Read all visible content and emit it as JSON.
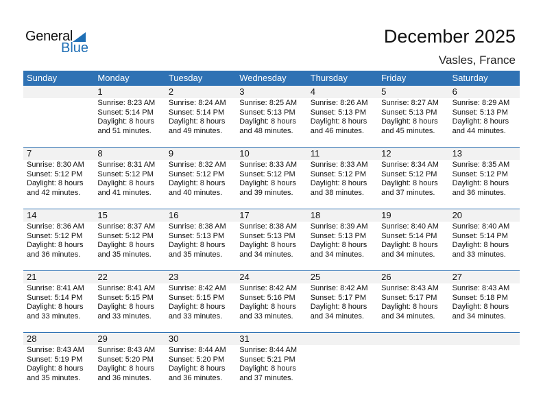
{
  "logo": {
    "text1": "General",
    "text2": "Blue"
  },
  "title": "December 2025",
  "location": "Vasles, France",
  "weekdays": [
    "Sunday",
    "Monday",
    "Tuesday",
    "Wednesday",
    "Thursday",
    "Friday",
    "Saturday"
  ],
  "weeks": [
    [
      null,
      {
        "day": "1",
        "sunrise": "Sunrise: 8:23 AM",
        "sunset": "Sunset: 5:14 PM",
        "d1": "Daylight: 8 hours",
        "d2": "and 51 minutes."
      },
      {
        "day": "2",
        "sunrise": "Sunrise: 8:24 AM",
        "sunset": "Sunset: 5:14 PM",
        "d1": "Daylight: 8 hours",
        "d2": "and 49 minutes."
      },
      {
        "day": "3",
        "sunrise": "Sunrise: 8:25 AM",
        "sunset": "Sunset: 5:13 PM",
        "d1": "Daylight: 8 hours",
        "d2": "and 48 minutes."
      },
      {
        "day": "4",
        "sunrise": "Sunrise: 8:26 AM",
        "sunset": "Sunset: 5:13 PM",
        "d1": "Daylight: 8 hours",
        "d2": "and 46 minutes."
      },
      {
        "day": "5",
        "sunrise": "Sunrise: 8:27 AM",
        "sunset": "Sunset: 5:13 PM",
        "d1": "Daylight: 8 hours",
        "d2": "and 45 minutes."
      },
      {
        "day": "6",
        "sunrise": "Sunrise: 8:29 AM",
        "sunset": "Sunset: 5:13 PM",
        "d1": "Daylight: 8 hours",
        "d2": "and 44 minutes."
      }
    ],
    [
      {
        "day": "7",
        "sunrise": "Sunrise: 8:30 AM",
        "sunset": "Sunset: 5:12 PM",
        "d1": "Daylight: 8 hours",
        "d2": "and 42 minutes."
      },
      {
        "day": "8",
        "sunrise": "Sunrise: 8:31 AM",
        "sunset": "Sunset: 5:12 PM",
        "d1": "Daylight: 8 hours",
        "d2": "and 41 minutes."
      },
      {
        "day": "9",
        "sunrise": "Sunrise: 8:32 AM",
        "sunset": "Sunset: 5:12 PM",
        "d1": "Daylight: 8 hours",
        "d2": "and 40 minutes."
      },
      {
        "day": "10",
        "sunrise": "Sunrise: 8:33 AM",
        "sunset": "Sunset: 5:12 PM",
        "d1": "Daylight: 8 hours",
        "d2": "and 39 minutes."
      },
      {
        "day": "11",
        "sunrise": "Sunrise: 8:33 AM",
        "sunset": "Sunset: 5:12 PM",
        "d1": "Daylight: 8 hours",
        "d2": "and 38 minutes."
      },
      {
        "day": "12",
        "sunrise": "Sunrise: 8:34 AM",
        "sunset": "Sunset: 5:12 PM",
        "d1": "Daylight: 8 hours",
        "d2": "and 37 minutes."
      },
      {
        "day": "13",
        "sunrise": "Sunrise: 8:35 AM",
        "sunset": "Sunset: 5:12 PM",
        "d1": "Daylight: 8 hours",
        "d2": "and 36 minutes."
      }
    ],
    [
      {
        "day": "14",
        "sunrise": "Sunrise: 8:36 AM",
        "sunset": "Sunset: 5:12 PM",
        "d1": "Daylight: 8 hours",
        "d2": "and 36 minutes."
      },
      {
        "day": "15",
        "sunrise": "Sunrise: 8:37 AM",
        "sunset": "Sunset: 5:12 PM",
        "d1": "Daylight: 8 hours",
        "d2": "and 35 minutes."
      },
      {
        "day": "16",
        "sunrise": "Sunrise: 8:38 AM",
        "sunset": "Sunset: 5:13 PM",
        "d1": "Daylight: 8 hours",
        "d2": "and 35 minutes."
      },
      {
        "day": "17",
        "sunrise": "Sunrise: 8:38 AM",
        "sunset": "Sunset: 5:13 PM",
        "d1": "Daylight: 8 hours",
        "d2": "and 34 minutes."
      },
      {
        "day": "18",
        "sunrise": "Sunrise: 8:39 AM",
        "sunset": "Sunset: 5:13 PM",
        "d1": "Daylight: 8 hours",
        "d2": "and 34 minutes."
      },
      {
        "day": "19",
        "sunrise": "Sunrise: 8:40 AM",
        "sunset": "Sunset: 5:14 PM",
        "d1": "Daylight: 8 hours",
        "d2": "and 34 minutes."
      },
      {
        "day": "20",
        "sunrise": "Sunrise: 8:40 AM",
        "sunset": "Sunset: 5:14 PM",
        "d1": "Daylight: 8 hours",
        "d2": "and 33 minutes."
      }
    ],
    [
      {
        "day": "21",
        "sunrise": "Sunrise: 8:41 AM",
        "sunset": "Sunset: 5:14 PM",
        "d1": "Daylight: 8 hours",
        "d2": "and 33 minutes."
      },
      {
        "day": "22",
        "sunrise": "Sunrise: 8:41 AM",
        "sunset": "Sunset: 5:15 PM",
        "d1": "Daylight: 8 hours",
        "d2": "and 33 minutes."
      },
      {
        "day": "23",
        "sunrise": "Sunrise: 8:42 AM",
        "sunset": "Sunset: 5:15 PM",
        "d1": "Daylight: 8 hours",
        "d2": "and 33 minutes."
      },
      {
        "day": "24",
        "sunrise": "Sunrise: 8:42 AM",
        "sunset": "Sunset: 5:16 PM",
        "d1": "Daylight: 8 hours",
        "d2": "and 33 minutes."
      },
      {
        "day": "25",
        "sunrise": "Sunrise: 8:42 AM",
        "sunset": "Sunset: 5:17 PM",
        "d1": "Daylight: 8 hours",
        "d2": "and 34 minutes."
      },
      {
        "day": "26",
        "sunrise": "Sunrise: 8:43 AM",
        "sunset": "Sunset: 5:17 PM",
        "d1": "Daylight: 8 hours",
        "d2": "and 34 minutes."
      },
      {
        "day": "27",
        "sunrise": "Sunrise: 8:43 AM",
        "sunset": "Sunset: 5:18 PM",
        "d1": "Daylight: 8 hours",
        "d2": "and 34 minutes."
      }
    ],
    [
      {
        "day": "28",
        "sunrise": "Sunrise: 8:43 AM",
        "sunset": "Sunset: 5:19 PM",
        "d1": "Daylight: 8 hours",
        "d2": "and 35 minutes."
      },
      {
        "day": "29",
        "sunrise": "Sunrise: 8:43 AM",
        "sunset": "Sunset: 5:20 PM",
        "d1": "Daylight: 8 hours",
        "d2": "and 36 minutes."
      },
      {
        "day": "30",
        "sunrise": "Sunrise: 8:44 AM",
        "sunset": "Sunset: 5:20 PM",
        "d1": "Daylight: 8 hours",
        "d2": "and 36 minutes."
      },
      {
        "day": "31",
        "sunrise": "Sunrise: 8:44 AM",
        "sunset": "Sunset: 5:21 PM",
        "d1": "Daylight: 8 hours",
        "d2": "and 37 minutes."
      },
      null,
      null,
      null
    ]
  ],
  "colors": {
    "header": "#2f72b4",
    "band": "#f2f2f2",
    "brand": "#1f6fb5"
  }
}
